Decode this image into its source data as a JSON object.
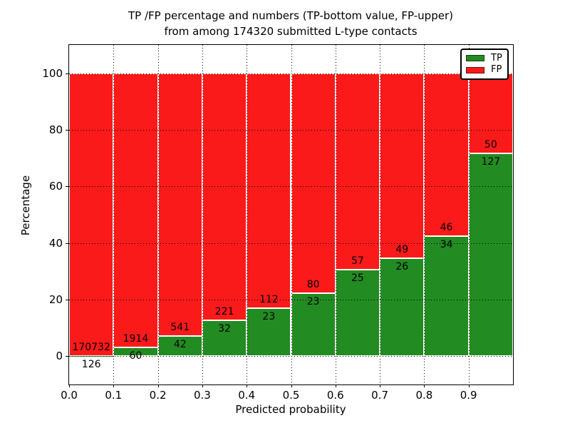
{
  "title": {
    "line1": "TP /FP percentage and numbers (TP-bottom value, FP-upper)",
    "line2": "from among 174320 submitted L-type contacts"
  },
  "chart_data": {
    "type": "bar",
    "stacked": true,
    "normalized": "each bin stacked to 100%",
    "title": "TP /FP percentage and numbers (TP-bottom value, FP-upper) from among 174320 submitted L-type contacts",
    "xlabel": "Predicted probability",
    "ylabel": "Percentage",
    "xlim": [
      0.0,
      1.0
    ],
    "ylim": [
      -10,
      110
    ],
    "bin_width": 0.1,
    "bin_starts": [
      0.0,
      0.1,
      0.2,
      0.3,
      0.4,
      0.5,
      0.6,
      0.7,
      0.8,
      0.9
    ],
    "x_tick_labels": [
      "0.0",
      "0.1",
      "0.2",
      "0.3",
      "0.4",
      "0.5",
      "0.6",
      "0.7",
      "0.8",
      "0.9"
    ],
    "y_ticks": [
      0,
      20,
      40,
      60,
      80,
      100
    ],
    "y_tick_labels": [
      "0",
      "20",
      "40",
      "60",
      "80",
      "100"
    ],
    "grid": {
      "style": "dotted",
      "color": "#000000",
      "on": true
    },
    "legend_position": "upper right",
    "series": [
      {
        "name": "TP",
        "color": "#228b22",
        "counts": [
          126,
          60,
          42,
          32,
          23,
          23,
          25,
          26,
          34,
          127
        ]
      },
      {
        "name": "FP",
        "color": "#fa1a1a",
        "counts": [
          170732,
          1914,
          541,
          221,
          112,
          80,
          57,
          49,
          46,
          50
        ]
      }
    ],
    "bar_label_rule": "FP count printed above TP/FP boundary, TP count printed below boundary"
  },
  "colors": {
    "tp": "#228b22",
    "fp": "#fa1a1a",
    "background": "#ffffff",
    "text": "#000000"
  }
}
